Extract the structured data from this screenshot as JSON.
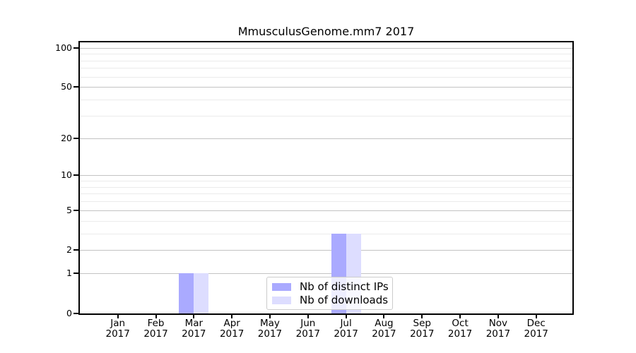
{
  "title": "MmusculusGenome.mm7 2017",
  "colors": {
    "ips": "#aaaaff",
    "downloads": "#ddddff",
    "grid_major": "#c3c3c3",
    "grid_minor": "#ebebeb",
    "spine": "#000000",
    "legend_border": "#cccccc"
  },
  "chart_data": {
    "type": "bar",
    "title": "MmusculusGenome.mm7 2017",
    "categories": [
      "Jan",
      "Feb",
      "Mar",
      "Apr",
      "May",
      "Jun",
      "Jul",
      "Aug",
      "Sep",
      "Oct",
      "Nov",
      "Dec"
    ],
    "category_year": "2017",
    "series": [
      {
        "name": "Nb of distinct IPs",
        "color_key": "ips",
        "values": [
          0,
          0,
          1,
          0,
          0,
          0,
          3,
          0,
          0,
          0,
          0,
          0
        ]
      },
      {
        "name": "Nb of downloads",
        "color_key": "downloads",
        "values": [
          0,
          0,
          1,
          0,
          0,
          0,
          3,
          0,
          0,
          0,
          0,
          0
        ]
      }
    ],
    "yscale": "log1p",
    "ylim": [
      0,
      110
    ],
    "y_ticks": [
      0,
      1,
      2,
      5,
      10,
      20,
      50,
      100
    ],
    "y_minor_gridlines": [
      3,
      4,
      6,
      7,
      8,
      9,
      30,
      40,
      60,
      70,
      80,
      90
    ],
    "grid": true,
    "legend_position": "inside-bottom-center"
  }
}
